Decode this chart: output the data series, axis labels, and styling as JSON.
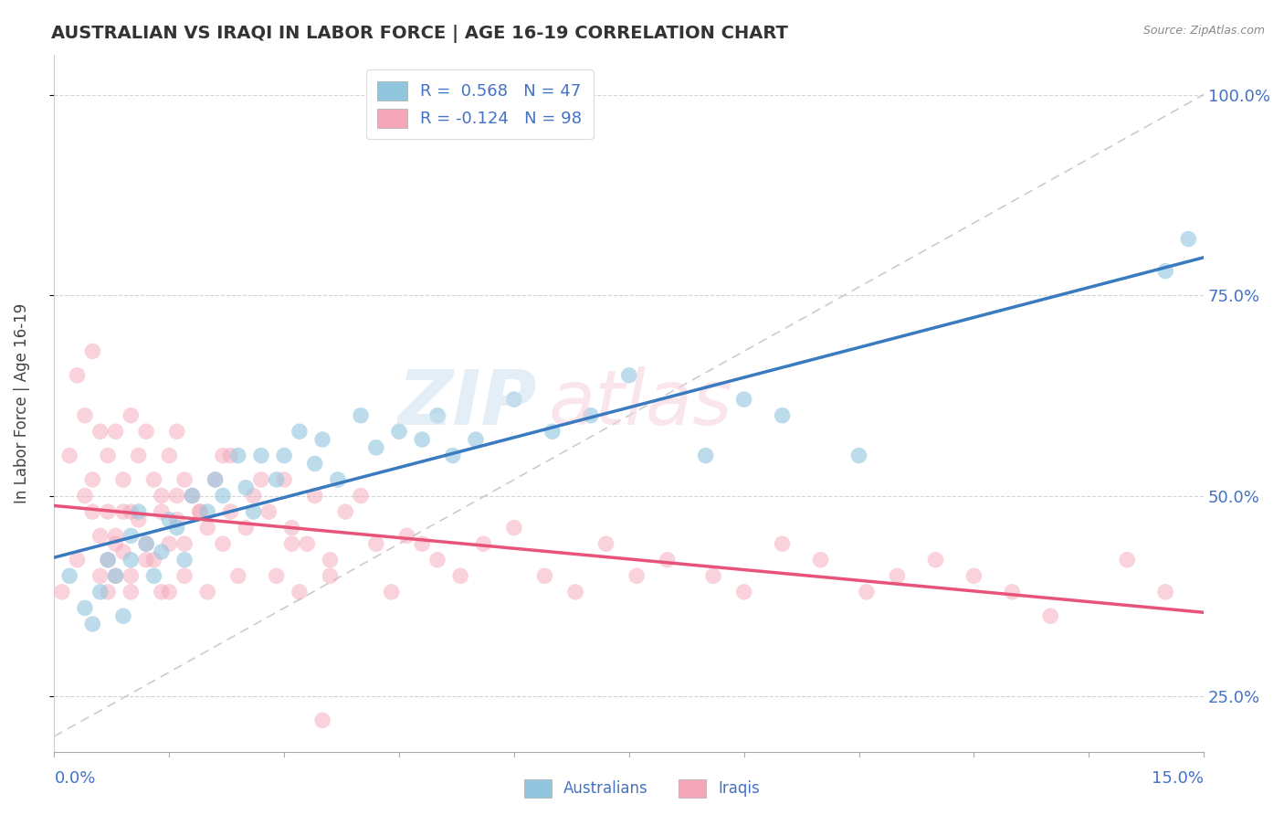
{
  "title": "AUSTRALIAN VS IRAQI IN LABOR FORCE | AGE 16-19 CORRELATION CHART",
  "source": "Source: ZipAtlas.com",
  "ylabel": "In Labor Force | Age 16-19",
  "xlim": [
    0.0,
    15.0
  ],
  "ylim": [
    18.0,
    105.0
  ],
  "yticks": [
    25.0,
    50.0,
    75.0,
    100.0
  ],
  "ytick_labels": [
    "25.0%",
    "50.0%",
    "75.0%",
    "100.0%"
  ],
  "blue_color": "#92c5de",
  "pink_color": "#f4a6b8",
  "blue_line_color": "#3a7abf",
  "pink_line_color": "#e8537a",
  "ref_line_color": "#bbbbbb",
  "blue_x": [
    0.2,
    0.4,
    0.5,
    0.6,
    0.7,
    0.8,
    0.9,
    1.0,
    1.0,
    1.1,
    1.2,
    1.3,
    1.4,
    1.5,
    1.6,
    1.7,
    1.8,
    2.0,
    2.1,
    2.2,
    2.4,
    2.5,
    2.6,
    2.7,
    2.9,
    3.0,
    3.2,
    3.4,
    3.5,
    3.7,
    4.0,
    4.2,
    4.5,
    4.8,
    5.0,
    5.2,
    5.5,
    6.0,
    6.5,
    7.0,
    7.5,
    8.5,
    9.0,
    9.5,
    10.5,
    14.5,
    14.8
  ],
  "blue_y": [
    40,
    36,
    34,
    38,
    42,
    40,
    35,
    42,
    45,
    48,
    44,
    40,
    43,
    47,
    46,
    42,
    50,
    48,
    52,
    50,
    55,
    51,
    48,
    55,
    52,
    55,
    58,
    54,
    57,
    52,
    60,
    56,
    58,
    57,
    60,
    55,
    57,
    62,
    58,
    60,
    65,
    55,
    62,
    60,
    55,
    78,
    82
  ],
  "pink_x": [
    0.1,
    0.2,
    0.3,
    0.3,
    0.4,
    0.4,
    0.5,
    0.5,
    0.6,
    0.6,
    0.6,
    0.7,
    0.7,
    0.7,
    0.8,
    0.8,
    0.8,
    0.9,
    0.9,
    1.0,
    1.0,
    1.0,
    1.1,
    1.1,
    1.2,
    1.2,
    1.3,
    1.3,
    1.4,
    1.4,
    1.5,
    1.5,
    1.5,
    1.6,
    1.6,
    1.7,
    1.7,
    1.8,
    1.9,
    2.0,
    2.0,
    2.1,
    2.2,
    2.3,
    2.4,
    2.5,
    2.6,
    2.8,
    2.9,
    3.0,
    3.1,
    3.2,
    3.4,
    3.5,
    3.6,
    3.8,
    4.0,
    4.2,
    4.4,
    4.8,
    5.0,
    5.3,
    5.6,
    6.0,
    6.4,
    6.8,
    7.2,
    7.6,
    8.0,
    8.6,
    9.0,
    9.5,
    10.0,
    10.6,
    11.0,
    11.5,
    12.0,
    12.5,
    13.0,
    14.0,
    14.5,
    3.6,
    3.3,
    2.7,
    2.2,
    1.9,
    1.7,
    1.4,
    1.2,
    1.0,
    0.8,
    0.7,
    0.5,
    4.6,
    3.1,
    2.3,
    1.6,
    0.9
  ],
  "pink_y": [
    38,
    55,
    65,
    42,
    50,
    60,
    52,
    68,
    58,
    45,
    40,
    55,
    48,
    38,
    58,
    45,
    40,
    52,
    43,
    60,
    48,
    38,
    55,
    47,
    58,
    44,
    52,
    42,
    50,
    38,
    55,
    44,
    38,
    58,
    47,
    52,
    40,
    50,
    48,
    46,
    38,
    52,
    44,
    48,
    40,
    46,
    50,
    48,
    40,
    52,
    44,
    38,
    50,
    22,
    42,
    48,
    50,
    44,
    38,
    44,
    42,
    40,
    44,
    46,
    40,
    38,
    44,
    40,
    42,
    40,
    38,
    44,
    42,
    38,
    40,
    42,
    40,
    38,
    35,
    42,
    38,
    40,
    44,
    52,
    55,
    48,
    44,
    48,
    42,
    40,
    44,
    42,
    48,
    45,
    46,
    55,
    50,
    48
  ]
}
